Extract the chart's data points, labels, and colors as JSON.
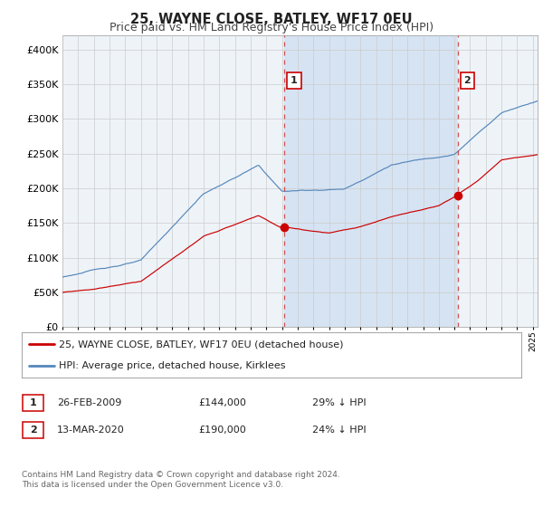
{
  "title": "25, WAYNE CLOSE, BATLEY, WF17 0EU",
  "subtitle": "Price paid vs. HM Land Registry's House Price Index (HPI)",
  "ylim": [
    0,
    420000
  ],
  "yticks": [
    0,
    50000,
    100000,
    150000,
    200000,
    250000,
    300000,
    350000,
    400000
  ],
  "xlim_start": 1995.0,
  "xlim_end": 2025.3,
  "sale1_date": 2009.15,
  "sale1_price": 144000,
  "sale1_label": "1",
  "sale2_date": 2020.2,
  "sale2_price": 190000,
  "sale2_label": "2",
  "red_color": "#cc0000",
  "blue_color": "#5588bb",
  "shade_color": "#ccddf0",
  "bg_color": "#ffffff",
  "plot_bg_color": "#eef3f8",
  "grid_color": "#cccccc",
  "legend_entry1": "25, WAYNE CLOSE, BATLEY, WF17 0EU (detached house)",
  "legend_entry2": "HPI: Average price, detached house, Kirklees",
  "table_row1": [
    "1",
    "26-FEB-2009",
    "£144,000",
    "29% ↓ HPI"
  ],
  "table_row2": [
    "2",
    "13-MAR-2020",
    "£190,000",
    "24% ↓ HPI"
  ],
  "footnote": "Contains HM Land Registry data © Crown copyright and database right 2024.\nThis data is licensed under the Open Government Licence v3.0.",
  "title_fontsize": 10.5,
  "subtitle_fontsize": 9,
  "axis_fontsize": 8,
  "legend_fontsize": 8,
  "table_fontsize": 8,
  "footnote_fontsize": 6.5
}
